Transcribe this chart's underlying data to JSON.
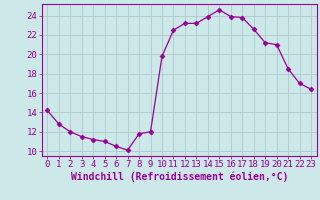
{
  "x": [
    0,
    1,
    2,
    3,
    4,
    5,
    6,
    7,
    8,
    9,
    10,
    11,
    12,
    13,
    14,
    15,
    16,
    17,
    18,
    19,
    20,
    21,
    22,
    23
  ],
  "y": [
    14.2,
    12.8,
    12.0,
    11.5,
    11.2,
    11.0,
    10.5,
    10.1,
    11.8,
    12.0,
    19.8,
    22.5,
    23.2,
    23.2,
    23.9,
    24.6,
    23.9,
    23.8,
    22.6,
    21.2,
    21.0,
    18.5,
    17.0,
    16.4
  ],
  "line_color": "#990099",
  "marker": "D",
  "marker_size": 2.5,
  "bg_color": "#cce8e8",
  "grid_color": "#b0c8c8",
  "xlabel": "Windchill (Refroidissement éolien,°C)",
  "xlim": [
    -0.5,
    23.5
  ],
  "ylim": [
    9.5,
    25.2
  ],
  "yticks": [
    10,
    12,
    14,
    16,
    18,
    20,
    22,
    24
  ],
  "xticks": [
    0,
    1,
    2,
    3,
    4,
    5,
    6,
    7,
    8,
    9,
    10,
    11,
    12,
    13,
    14,
    15,
    16,
    17,
    18,
    19,
    20,
    21,
    22,
    23
  ],
  "tick_color": "#990099",
  "label_color": "#990099",
  "axis_color": "#990099",
  "tick_fontsize": 6.5,
  "xlabel_fontsize": 7.0
}
